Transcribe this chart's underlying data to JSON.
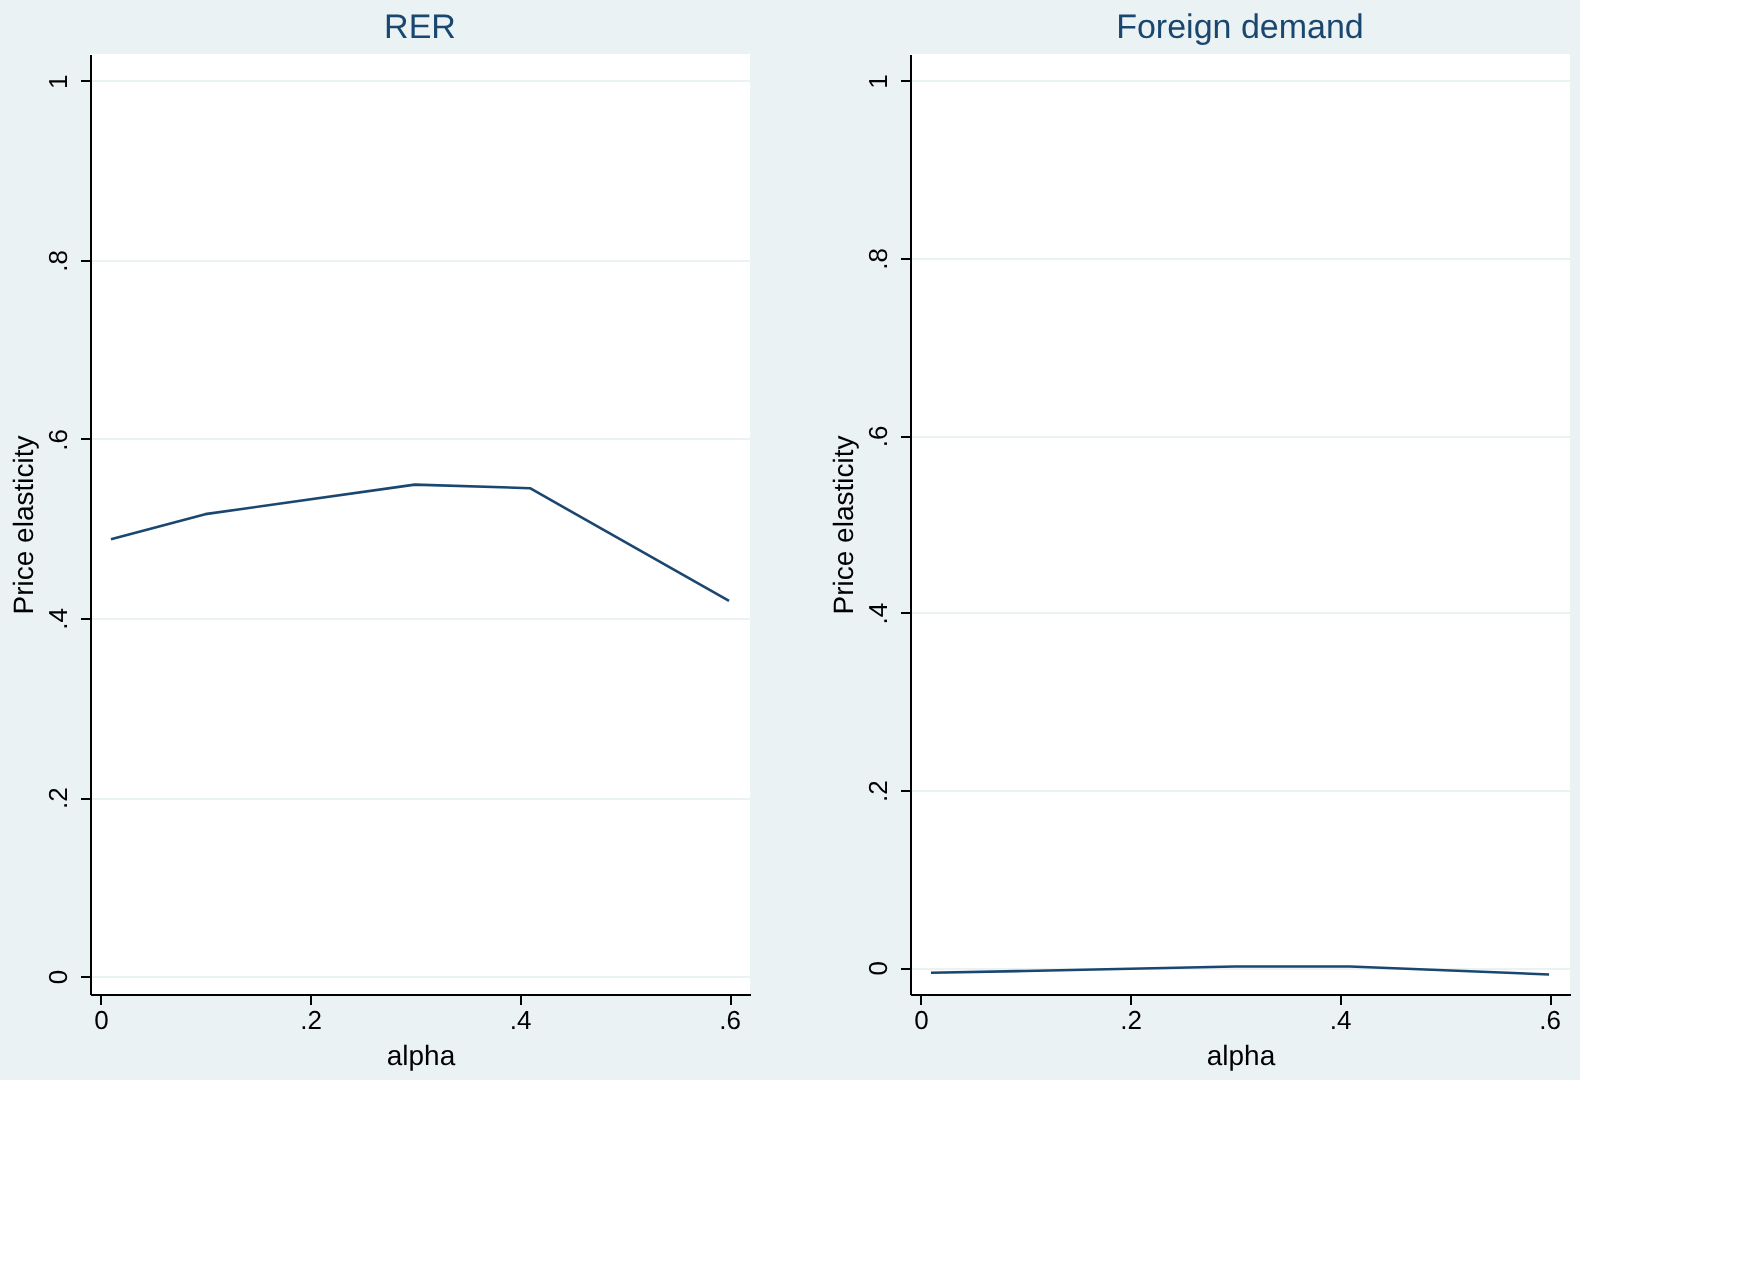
{
  "chart_data": [
    {
      "type": "line",
      "title": "RER",
      "xlabel": "alpha",
      "ylabel": "Price elasticity",
      "x": [
        0.01,
        0.1,
        0.3,
        0.41,
        0.6
      ],
      "series": [
        {
          "color": "#1a476f",
          "values": [
            0.488,
            0.516,
            0.549,
            0.545,
            0.419
          ]
        }
      ],
      "xlim": [
        -0.01,
        0.62
      ],
      "ylim": [
        -0.02,
        1.03
      ],
      "xticks": [
        0,
        {
          "value": 0.2,
          "label": ".2"
        },
        {
          "value": 0.4,
          "label": ".4"
        },
        {
          "value": 0.6,
          "label": ".6"
        }
      ],
      "yticks": [
        0,
        {
          "value": 0.2,
          "label": ".2"
        },
        {
          "value": 0.4,
          "label": ".4"
        },
        {
          "value": 0.6,
          "label": ".6"
        },
        {
          "value": 0.8,
          "label": ".8"
        },
        1
      ],
      "grid": "y",
      "line_style": "solid"
    },
    {
      "type": "line",
      "title": "Foreign demand",
      "xlabel": "alpha",
      "ylabel": "Price elasticity",
      "x": [
        0.01,
        0.1,
        0.3,
        0.41,
        0.6
      ],
      "series": [
        {
          "color": "#1a476f",
          "values": [
            -0.006,
            -0.004,
            0.001,
            0.001,
            -0.008
          ]
        }
      ],
      "xlim": [
        -0.01,
        0.62
      ],
      "ylim": [
        -0.03,
        1.03
      ],
      "xticks": [
        0,
        {
          "value": 0.2,
          "label": ".2"
        },
        {
          "value": 0.4,
          "label": ".4"
        },
        {
          "value": 0.6,
          "label": ".6"
        }
      ],
      "yticks": [
        0,
        {
          "value": 0.2,
          "label": ".2"
        },
        {
          "value": 0.4,
          "label": ".4"
        },
        {
          "value": 0.6,
          "label": ".6"
        },
        {
          "value": 0.8,
          "label": ".8"
        },
        1
      ],
      "grid": "y",
      "line_style": "solid"
    }
  ]
}
